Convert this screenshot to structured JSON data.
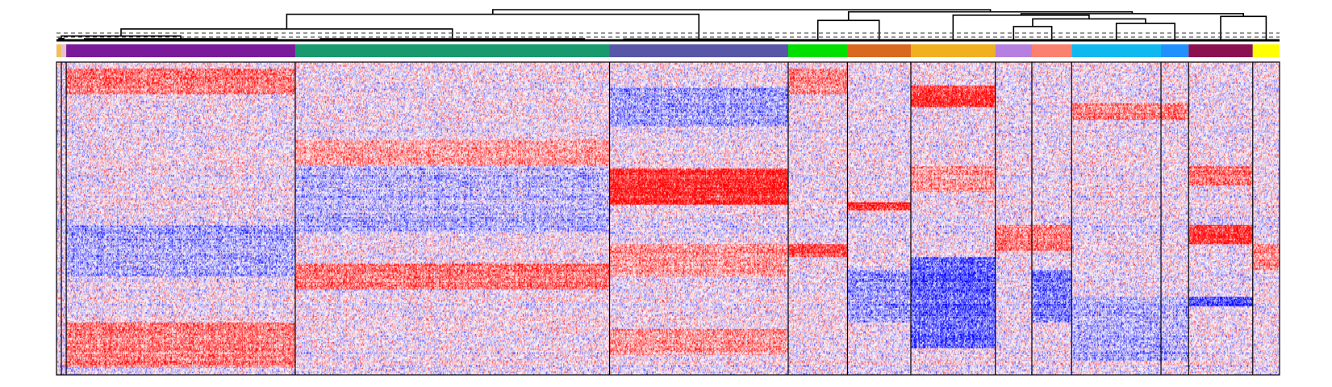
{
  "chart_data": {
    "type": "heatmap",
    "title": "",
    "xlabel": "",
    "ylabel": "",
    "value_range": [
      -1,
      1
    ],
    "colors": {
      "low": "#0000ff",
      "mid": "#ffffff",
      "high": "#ff0000",
      "frame": "#000000",
      "dendrogram": "#000000",
      "cut_line": "#333333"
    },
    "row_count": 240,
    "dendrogram": {
      "cut_line_style": "dashed",
      "level_count": 5
    },
    "clusters": [
      {
        "id": 1,
        "color": "#f0c060",
        "weight": 0.6
      },
      {
        "id": 2,
        "color": "#e8c0d0",
        "weight": 0.6
      },
      {
        "id": 3,
        "color": "#7a1a9a",
        "weight": 28.2
      },
      {
        "id": 4,
        "color": "#18996e",
        "weight": 38.7
      },
      {
        "id": 5,
        "color": "#5856a6",
        "weight": 22.0
      },
      {
        "id": 6,
        "color": "#00e000",
        "weight": 7.3
      },
      {
        "id": 7,
        "color": "#d8691e",
        "weight": 7.8
      },
      {
        "id": 8,
        "color": "#f0b020",
        "weight": 10.4
      },
      {
        "id": 9,
        "color": "#b580e0",
        "weight": 4.5
      },
      {
        "id": 10,
        "color": "#fa8070",
        "weight": 4.9
      },
      {
        "id": 11,
        "color": "#10b8f0",
        "weight": 11.0
      },
      {
        "id": 12,
        "color": "#2090ff",
        "weight": 3.4
      },
      {
        "id": 13,
        "color": "#8b1050",
        "weight": 7.9
      },
      {
        "id": 14,
        "color": "#ffff00",
        "weight": 3.3
      }
    ],
    "cluster_separators": [
      1,
      2,
      3,
      4,
      5,
      6,
      7,
      8,
      9,
      10,
      11,
      12,
      13
    ],
    "merge_tree": [
      {
        "members": [
          3
        ],
        "height": 0.05
      },
      {
        "members": [
          4
        ],
        "height": 0.05
      },
      {
        "members": [
          5
        ],
        "height": 0.04
      },
      {
        "members": [
          1,
          2
        ],
        "height": 0.06
      },
      {
        "members": [
          1,
          2,
          3
        ],
        "height": 0.14
      },
      {
        "members": [
          1,
          2,
          3,
          4
        ],
        "height": 0.37
      },
      {
        "members": [
          1,
          2,
          3,
          4,
          5
        ],
        "height": 0.85
      },
      {
        "members": [
          6,
          7
        ],
        "height": 0.65
      },
      {
        "members": [
          9,
          10
        ],
        "height": 0.45
      },
      {
        "members": [
          11,
          12
        ],
        "height": 0.55
      },
      {
        "members": [
          9,
          10,
          11,
          12
        ],
        "height": 0.7
      },
      {
        "members": [
          8,
          9,
          10,
          11,
          12
        ],
        "height": 0.82
      },
      {
        "members": [
          13,
          14
        ],
        "height": 0.78
      },
      {
        "members": [
          8,
          9,
          10,
          11,
          12,
          13,
          14
        ],
        "height": 0.87
      },
      {
        "members": [
          6,
          7,
          8,
          9,
          10,
          11,
          12,
          13,
          14
        ],
        "height": 0.93
      },
      {
        "members": [
          1,
          2,
          3,
          4,
          5,
          6,
          7,
          8,
          9,
          10,
          11,
          12,
          13,
          14
        ],
        "height": 1.0
      }
    ],
    "row_bands": [
      {
        "clusters": [
          3
        ],
        "rows": [
          5,
          25
        ],
        "value": 0.55
      },
      {
        "clusters": [
          3
        ],
        "rows": [
          200,
          235
        ],
        "value": 0.5
      },
      {
        "clusters": [
          3
        ],
        "rows": [
          125,
          165
        ],
        "value": -0.3
      },
      {
        "clusters": [
          4
        ],
        "rows": [
          155,
          175
        ],
        "value": 0.55
      },
      {
        "clusters": [
          4
        ],
        "rows": [
          60,
          80
        ],
        "value": 0.35
      },
      {
        "clusters": [
          4
        ],
        "rows": [
          80,
          130
        ],
        "value": -0.25
      },
      {
        "clusters": [
          5
        ],
        "rows": [
          82,
          110
        ],
        "value": 0.85
      },
      {
        "clusters": [
          5
        ],
        "rows": [
          140,
          165
        ],
        "value": 0.4
      },
      {
        "clusters": [
          5
        ],
        "rows": [
          205,
          225
        ],
        "value": 0.4
      },
      {
        "clusters": [
          5
        ],
        "rows": [
          20,
          50
        ],
        "value": -0.35
      },
      {
        "clusters": [
          6
        ],
        "rows": [
          140,
          150
        ],
        "value": 0.7
      },
      {
        "clusters": [
          6
        ],
        "rows": [
          5,
          25
        ],
        "value": 0.45
      },
      {
        "clusters": [
          7
        ],
        "rows": [
          108,
          114
        ],
        "value": 0.85
      },
      {
        "clusters": [
          7
        ],
        "rows": [
          160,
          200
        ],
        "value": -0.35
      },
      {
        "clusters": [
          8
        ],
        "rows": [
          18,
          35
        ],
        "value": 0.8
      },
      {
        "clusters": [
          8
        ],
        "rows": [
          80,
          100
        ],
        "value": 0.4
      },
      {
        "clusters": [
          8
        ],
        "rows": [
          150,
          220
        ],
        "value": -0.6
      },
      {
        "clusters": [
          9,
          10
        ],
        "rows": [
          125,
          145
        ],
        "value": 0.55
      },
      {
        "clusters": [
          10
        ],
        "rows": [
          160,
          200
        ],
        "value": -0.5
      },
      {
        "clusters": [
          11,
          12
        ],
        "rows": [
          32,
          45
        ],
        "value": 0.5
      },
      {
        "clusters": [
          11,
          12
        ],
        "rows": [
          180,
          230
        ],
        "value": -0.3
      },
      {
        "clusters": [
          13
        ],
        "rows": [
          125,
          140
        ],
        "value": 0.85
      },
      {
        "clusters": [
          13
        ],
        "rows": [
          80,
          95
        ],
        "value": 0.55
      },
      {
        "clusters": [
          13
        ],
        "rows": [
          180,
          188
        ],
        "value": -0.7
      },
      {
        "clusters": [
          14
        ],
        "rows": [
          140,
          160
        ],
        "value": 0.45
      }
    ]
  }
}
